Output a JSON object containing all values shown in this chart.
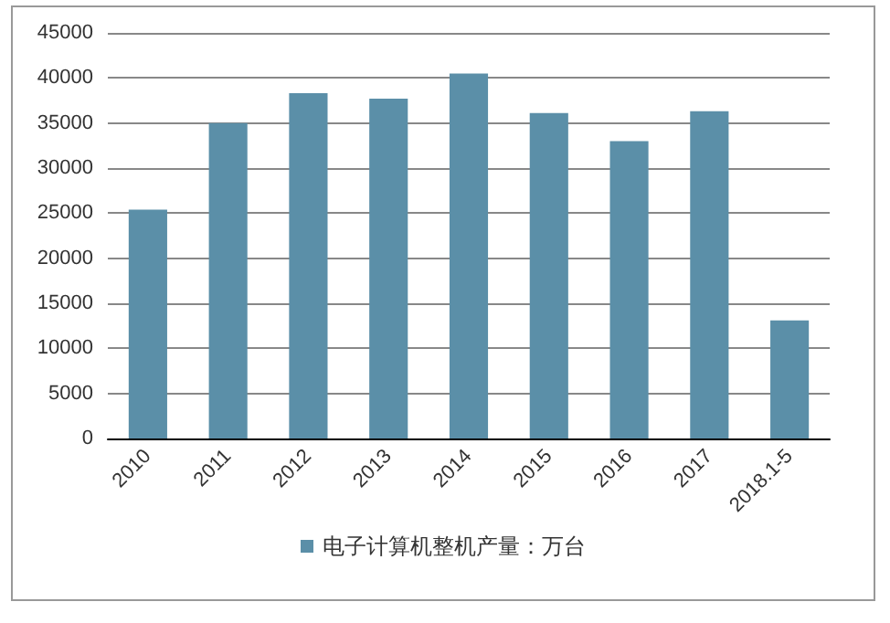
{
  "chart_data": {
    "type": "bar",
    "categories": [
      "2010",
      "2011",
      "2012",
      "2013",
      "2014",
      "2015",
      "2016",
      "2017",
      "2018.1-5"
    ],
    "series": [
      {
        "name": "电子计算机整机产量：万台",
        "color": "#5b8fa8",
        "values": [
          25400,
          35000,
          38300,
          37700,
          40500,
          36100,
          33000,
          36300,
          13100
        ]
      }
    ],
    "ylim": [
      0,
      45000
    ],
    "yticks": [
      0,
      5000,
      10000,
      15000,
      20000,
      25000,
      30000,
      35000,
      40000,
      45000
    ],
    "grid": "y",
    "legend": "bottom"
  }
}
